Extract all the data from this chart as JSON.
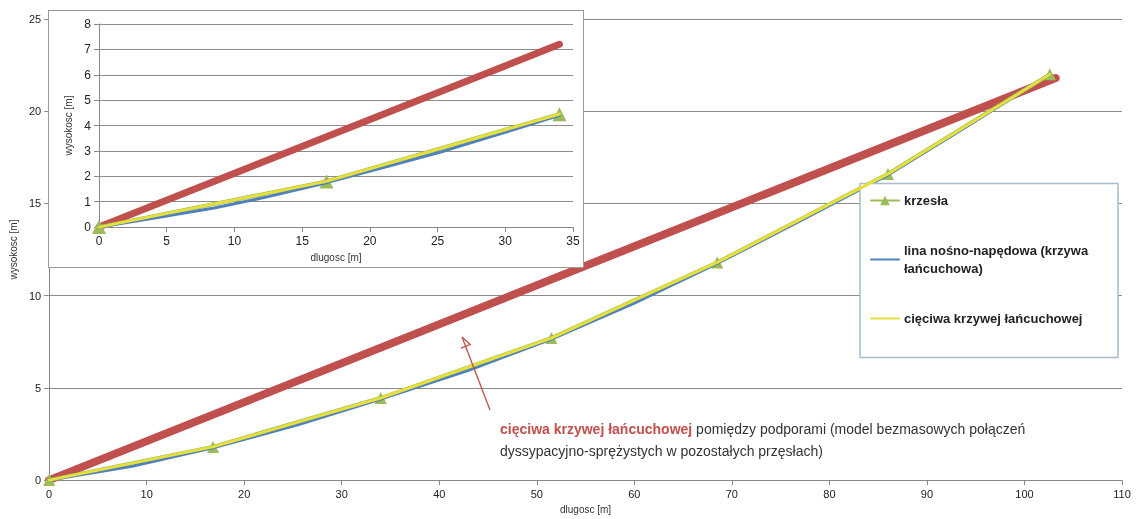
{
  "chart_data": [
    {
      "type": "line",
      "xlabel": "dlugosc [m]",
      "ylabel": "wysokosc [m]",
      "xlim": [
        0,
        110
      ],
      "xticks": [
        0,
        10,
        20,
        30,
        40,
        50,
        60,
        70,
        80,
        90,
        100,
        110
      ],
      "ylim": [
        0,
        25
      ],
      "yticks": [
        0,
        5,
        10,
        15,
        20,
        25
      ],
      "grid": "y",
      "legend": "right",
      "line_style": "solid",
      "series": [
        {
          "name": "krzesła",
          "color": "#9bbb59",
          "marker": "triangle",
          "x": [
            0,
            16.8,
            34,
            51.5,
            68.5,
            86,
            102.6
          ],
          "values": [
            0,
            1.8,
            4.45,
            7.7,
            11.8,
            16.6,
            22.0
          ]
        },
        {
          "name": "lina nośno-napędowa (krzywa łańcuchowa)",
          "color": "#4f81bd",
          "marker": "none",
          "x": [
            0,
            8.5,
            16.8,
            25.5,
            34,
            43,
            51.5,
            60,
            68.5,
            77,
            86,
            94,
            102.6
          ],
          "values": [
            0,
            0.75,
            1.75,
            3.0,
            4.4,
            5.95,
            7.65,
            9.6,
            11.75,
            14.05,
            16.55,
            19.15,
            22.0
          ]
        },
        {
          "name": "cięciwa krzywej łańcuchowej",
          "color": "#e6df3c",
          "marker": "none",
          "x": [
            0,
            16.8,
            34,
            51.5,
            68.5,
            86,
            102.6
          ],
          "values": [
            0,
            1.8,
            4.45,
            7.7,
            11.8,
            16.6,
            22.0
          ]
        },
        {
          "color": "#c0504d",
          "marker": "none",
          "x": [
            0,
            103.2
          ],
          "values": [
            0,
            21.8
          ]
        }
      ],
      "annotations": [
        "cięciwa krzywej łańcuchowej",
        "pomiędzy podporami (model bezmasowych połączeń dyssypacyjno-sprężystych w pozostałych przęsłach)"
      ]
    },
    {
      "type": "line",
      "xlabel": "dlugosc [m]",
      "ylabel": "wysokosc [m]",
      "xlim": [
        0,
        35
      ],
      "xticks": [
        0,
        5,
        10,
        15,
        20,
        25,
        30,
        35
      ],
      "ylim": [
        0,
        8
      ],
      "yticks": [
        0,
        1,
        2,
        3,
        4,
        5,
        6,
        7,
        8
      ],
      "grid": "y",
      "line_style": "solid",
      "series": [
        {
          "color": "#9bbb59",
          "marker": "triangle",
          "x": [
            0,
            16.8,
            34
          ],
          "values": [
            0,
            1.8,
            4.45
          ]
        },
        {
          "color": "#4f81bd",
          "marker": "none",
          "x": [
            0,
            4,
            8.5,
            12.5,
            16.8,
            21,
            25.5,
            29.5,
            34
          ],
          "values": [
            0,
            0.35,
            0.75,
            1.2,
            1.75,
            2.35,
            3.0,
            3.65,
            4.4
          ]
        },
        {
          "color": "#e6df3c",
          "marker": "none",
          "x": [
            0,
            16.8,
            34
          ],
          "values": [
            0,
            1.8,
            4.45
          ]
        },
        {
          "color": "#c0504d",
          "marker": "none",
          "x": [
            0,
            34
          ],
          "values": [
            0,
            7.2
          ]
        }
      ]
    }
  ]
}
